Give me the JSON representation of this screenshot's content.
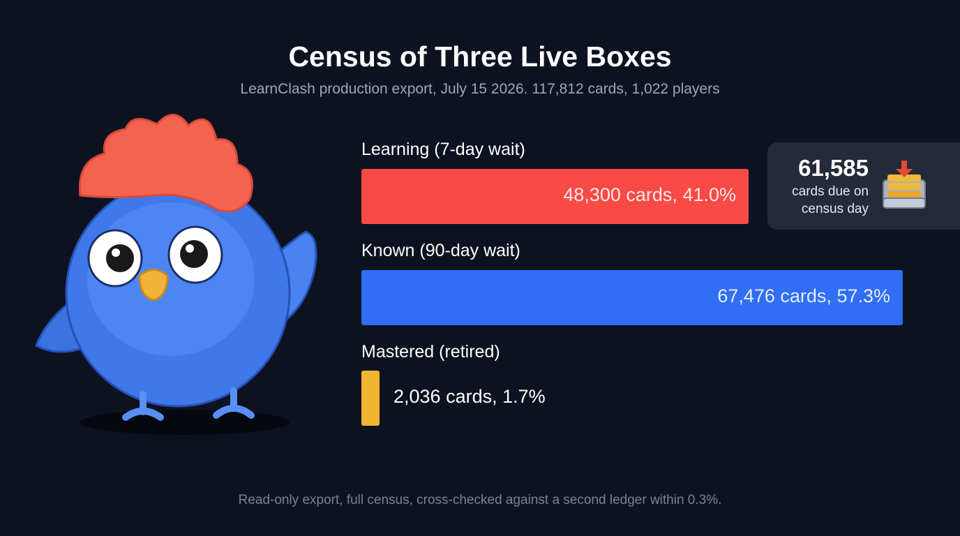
{
  "header": {
    "title": "Census of Three Live Boxes",
    "subtitle": "LearnClash production export, July 15 2026. 117,812 cards, 1,022 players"
  },
  "chart_data": {
    "type": "bar",
    "orientation": "horizontal",
    "title": "Census of Three Live Boxes",
    "subtitle": "LearnClash production export, July 15 2026. 117,812 cards, 1,022 players",
    "categories": [
      "Learning (7-day wait)",
      "Known (90-day wait)",
      "Mastered (retired)"
    ],
    "values": [
      48300,
      67476,
      2036
    ],
    "percents": [
      41.0,
      57.3,
      1.7
    ],
    "value_labels": [
      "48,300 cards, 41.0%",
      "67,476 cards, 57.3%",
      "2,036 cards, 1.7%"
    ],
    "colors": [
      "#f94a46",
      "#2f6ef5",
      "#f3b52f"
    ],
    "xlim": [
      0,
      67476
    ],
    "grid": false,
    "legend": "none"
  },
  "callout": {
    "number": "61,585",
    "text_line1": "cards due on",
    "text_line2": "census day",
    "icon": "inbox-tray-icon"
  },
  "footer": {
    "note": "Read-only export, full census, cross-checked against a second ledger within 0.3%."
  },
  "mascot": {
    "icon": "blue-bird-mascot"
  }
}
